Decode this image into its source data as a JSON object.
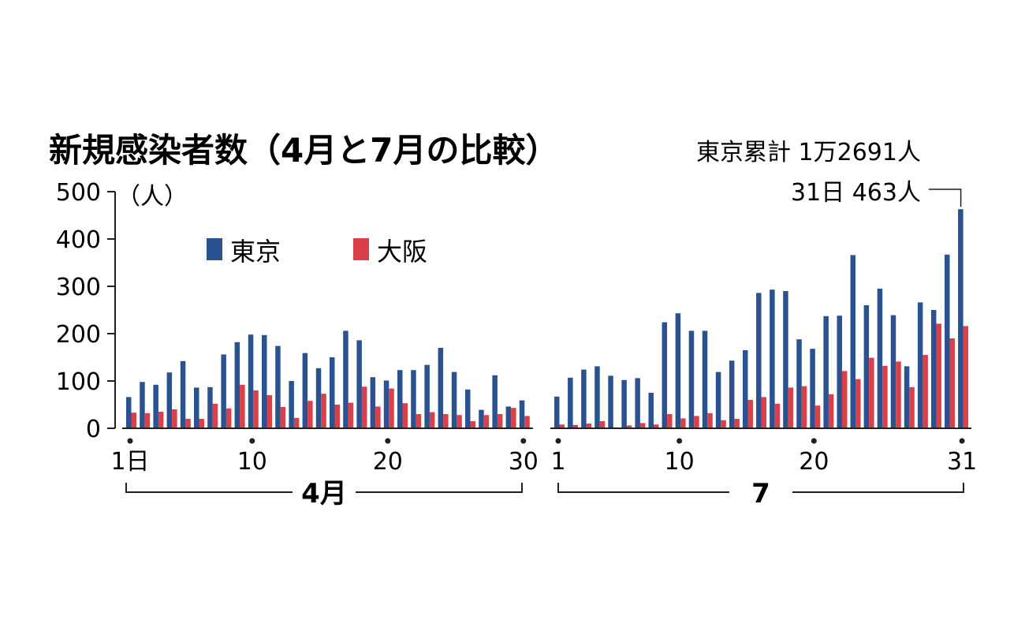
{
  "colors": {
    "tokyo": "#2b5290",
    "osaka": "#d9404a",
    "text": "#231f20"
  },
  "chart_data": {
    "type": "bar",
    "title": "新規感染者数（4月と7月の比較）",
    "unit": "（人）",
    "legend": [
      "東京",
      "大阪"
    ],
    "ylim": [
      0,
      500
    ],
    "yticks": [
      "0",
      "100",
      "200",
      "300",
      "400",
      "500"
    ],
    "annotation_total": "東京累計 1万2691人",
    "annotation_last": "31日 463人",
    "panels": [
      {
        "month_label": "4月",
        "ticks": [
          {
            "day": 1,
            "label": "1日"
          },
          {
            "day": 10,
            "label": "10"
          },
          {
            "day": 20,
            "label": "20"
          },
          {
            "day": 30,
            "label": "30"
          }
        ],
        "days": [
          1,
          2,
          3,
          4,
          5,
          6,
          7,
          8,
          9,
          10,
          11,
          12,
          13,
          14,
          15,
          16,
          17,
          18,
          19,
          20,
          21,
          22,
          23,
          24,
          25,
          26,
          27,
          28,
          29,
          30
        ],
        "series": [
          {
            "name": "東京",
            "values": [
              66,
              98,
              92,
              118,
              142,
              86,
              87,
              156,
              182,
              198,
              197,
              174,
              100,
              159,
              127,
              150,
              206,
              186,
              108,
              101,
              123,
              123,
              134,
              170,
              119,
              82,
              39,
              112,
              46,
              59
            ]
          },
          {
            "name": "大阪",
            "values": [
              33,
              32,
              35,
              40,
              20,
              20,
              52,
              42,
              92,
              80,
              70,
              45,
              22,
              58,
              73,
              50,
              54,
              88,
              46,
              84,
              53,
              30,
              34,
              30,
              28,
              15,
              28,
              30,
              43,
              26
            ]
          }
        ]
      },
      {
        "month_label": "7",
        "ticks": [
          {
            "day": 1,
            "label": "1"
          },
          {
            "day": 10,
            "label": "10"
          },
          {
            "day": 20,
            "label": "20"
          },
          {
            "day": 31,
            "label": "31"
          }
        ],
        "days": [
          1,
          2,
          3,
          4,
          5,
          6,
          7,
          8,
          9,
          10,
          11,
          12,
          13,
          14,
          15,
          16,
          17,
          18,
          19,
          20,
          21,
          22,
          23,
          24,
          25,
          26,
          27,
          28,
          29,
          30,
          31
        ],
        "series": [
          {
            "name": "東京",
            "values": [
              67,
              107,
              124,
              131,
              111,
              102,
              106,
              75,
              224,
              243,
              206,
              206,
              119,
              143,
              165,
              286,
              293,
              290,
              188,
              168,
              237,
              238,
              366,
              260,
              295,
              239,
              131,
              266,
              250,
              367,
              463
            ]
          },
          {
            "name": "大阪",
            "values": [
              8,
              7,
              10,
              15,
              2,
              6,
              11,
              8,
              30,
              21,
              26,
              32,
              17,
              20,
              60,
              66,
              52,
              86,
              89,
              48,
              72,
              121,
              104,
              149,
              132,
              141,
              87,
              155,
              221,
              190,
              216
            ]
          }
        ]
      }
    ]
  }
}
